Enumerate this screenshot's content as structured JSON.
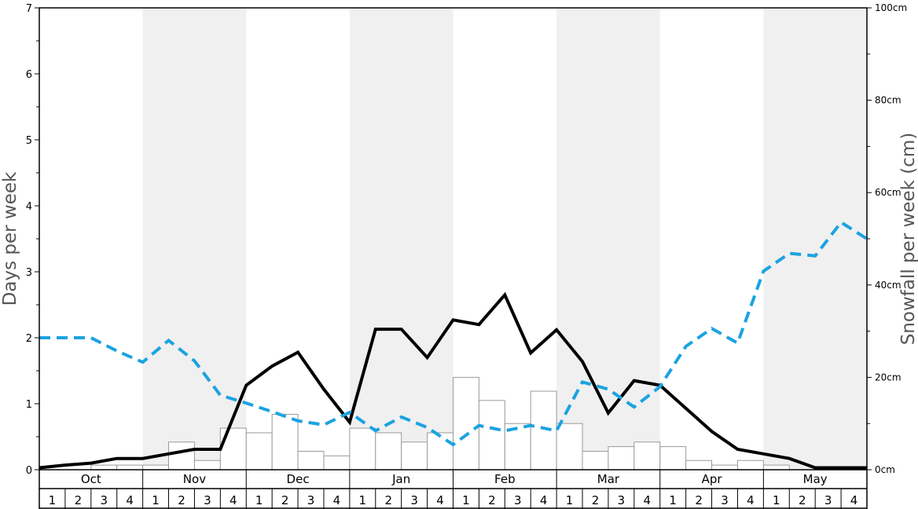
{
  "chart_data": {
    "type": "bar+line",
    "title": "",
    "left_axis": {
      "label": "Days per week",
      "ylim": [
        0,
        7
      ],
      "ticks": [
        "0",
        "1",
        "2",
        "3",
        "4",
        "5",
        "6",
        "7"
      ]
    },
    "right_axis": {
      "label": "Snowfall per week (cm)",
      "ylim": [
        0,
        100
      ],
      "ticks": [
        "0cm",
        "20cm",
        "40cm",
        "60cm",
        "80cm",
        "100cm"
      ]
    },
    "months": [
      "Oct",
      "Nov",
      "Dec",
      "Jan",
      "Feb",
      "Mar",
      "Apr",
      "May"
    ],
    "weeks": [
      "1",
      "2",
      "3",
      "4"
    ],
    "shaded_months": [
      "Nov",
      "Jan",
      "Mar",
      "May"
    ],
    "colors": {
      "bar_fill": "#ffffff",
      "bar_stroke": "#9a9a9a",
      "solid_line": "#000000",
      "dashed_line": "#1ba3e0",
      "shade": "#f0f0f0"
    },
    "snowfall_bars_cm": [
      0,
      0,
      1,
      1,
      1,
      6,
      2,
      9,
      8,
      12,
      4,
      3,
      9,
      8,
      6,
      8,
      20,
      15,
      10,
      17,
      10,
      4,
      5,
      6,
      5,
      2,
      1,
      2,
      1,
      0,
      0,
      0
    ],
    "series": [
      {
        "style": "solid-black",
        "axis": "left",
        "values": [
          0.03,
          0.07,
          0.1,
          0.17,
          0.17,
          0.24,
          0.31,
          0.31,
          1.28,
          1.57,
          1.78,
          1.22,
          0.72,
          2.13,
          2.13,
          1.7,
          2.27,
          2.2,
          2.65,
          1.77,
          2.12,
          1.64,
          0.86,
          1.35,
          1.28,
          0.93,
          0.58,
          0.31,
          0.24,
          0.17,
          0.03,
          0.03,
          0.03
        ]
      },
      {
        "style": "dashed-blue",
        "axis": "left",
        "values": [
          2.0,
          2.0,
          2.0,
          1.8,
          1.63,
          1.96,
          1.65,
          1.13,
          1.01,
          0.88,
          0.74,
          0.68,
          0.87,
          0.59,
          0.8,
          0.64,
          0.38,
          0.67,
          0.59,
          0.67,
          0.59,
          1.33,
          1.22,
          0.95,
          1.26,
          1.87,
          2.14,
          1.92,
          3.01,
          3.28,
          3.24,
          3.75,
          3.5
        ]
      }
    ]
  }
}
